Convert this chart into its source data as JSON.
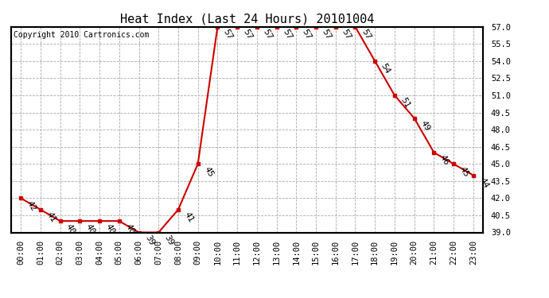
{
  "title": "Heat Index (Last 24 Hours) 20101004",
  "copyright": "Copyright 2010 Cartronics.com",
  "hours": [
    "00:00",
    "01:00",
    "02:00",
    "03:00",
    "04:00",
    "05:00",
    "06:00",
    "07:00",
    "08:00",
    "09:00",
    "10:00",
    "11:00",
    "12:00",
    "13:00",
    "14:00",
    "15:00",
    "16:00",
    "17:00",
    "18:00",
    "19:00",
    "20:00",
    "21:00",
    "22:00",
    "23:00"
  ],
  "values": [
    42,
    41,
    40,
    40,
    40,
    40,
    39,
    39,
    41,
    45,
    57,
    57,
    57,
    57,
    57,
    57,
    57,
    57,
    54,
    51,
    49,
    46,
    45,
    44
  ],
  "ylim_min": 39.0,
  "ylim_max": 57.0,
  "line_color": "#cc0000",
  "marker_color": "#cc0000",
  "bg_color": "#ffffff",
  "plot_bg_color": "#ffffff",
  "grid_color": "#aaaaaa",
  "label_color": "#000000",
  "title_fontsize": 11,
  "tick_fontsize": 7.5,
  "annotation_fontsize": 8,
  "copyright_fontsize": 7,
  "ytick_labels": [
    39.0,
    40.5,
    42.0,
    43.5,
    45.0,
    46.5,
    48.0,
    49.5,
    51.0,
    52.5,
    54.0,
    55.5,
    57.0
  ]
}
